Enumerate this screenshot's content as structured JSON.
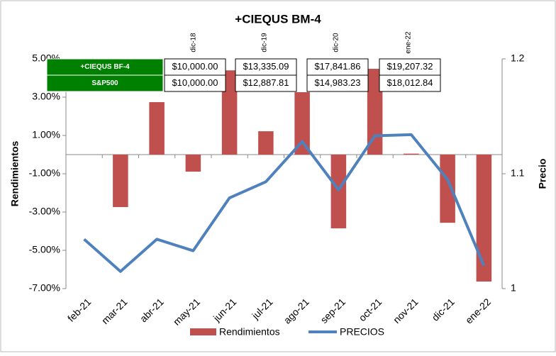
{
  "chart_data": {
    "type": "bar_line",
    "title": "+CIEQUS BM-4",
    "y_label": "Rendimientos",
    "y2_label": "Precio",
    "categories": [
      "feb-21",
      "mar-21",
      "abr-21",
      "may-21",
      "jun-21",
      "jul-21",
      "ago-21",
      "sep-21",
      "oct-21",
      "nov-21",
      "dic-21",
      "ene-22"
    ],
    "series": [
      {
        "name": "Rendimientos",
        "type": "bar",
        "color": "#c0504d",
        "values": [
          0,
          -2.74,
          2.74,
          -0.89,
          4.4,
          1.22,
          3.26,
          -3.85,
          4.48,
          0.05,
          -3.56,
          -6.63
        ]
      },
      {
        "name": "PRECIOS",
        "type": "line",
        "axis": "y2",
        "color": "#4f81bd",
        "values": [
          1.043,
          1.015,
          1.043,
          1.033,
          1.079,
          1.093,
          1.128,
          1.086,
          1.133,
          1.134,
          1.095,
          1.02
        ]
      }
    ],
    "ylim": [
      -7,
      5
    ],
    "yticks": [
      {
        "value": 5,
        "label": "5.00%"
      },
      {
        "value": 3,
        "label": "3.00%"
      },
      {
        "value": 1,
        "label": "1.00%"
      },
      {
        "value": -1,
        "label": "-1.00%"
      },
      {
        "value": -3,
        "label": "-3.00%"
      },
      {
        "value": -5,
        "label": "-5.00%"
      },
      {
        "value": -7,
        "label": "-7.00%"
      }
    ],
    "y2lim": [
      1,
      1.2
    ],
    "y2ticks": [
      1.2,
      1.1,
      1
    ],
    "table": {
      "columns": [
        "dic-18",
        "dic-19",
        "dic-20",
        "ene-22"
      ],
      "rows": [
        {
          "name": "+CIEQUS BF-4",
          "values": [
            "$10,000.00",
            "$13,335.09",
            "$17,841.86",
            "$19,207.32"
          ]
        },
        {
          "name": "S&P500",
          "values": [
            "$10,000.00",
            "$12,887.81",
            "$14,983.23",
            "$18,012.84"
          ]
        }
      ]
    }
  }
}
